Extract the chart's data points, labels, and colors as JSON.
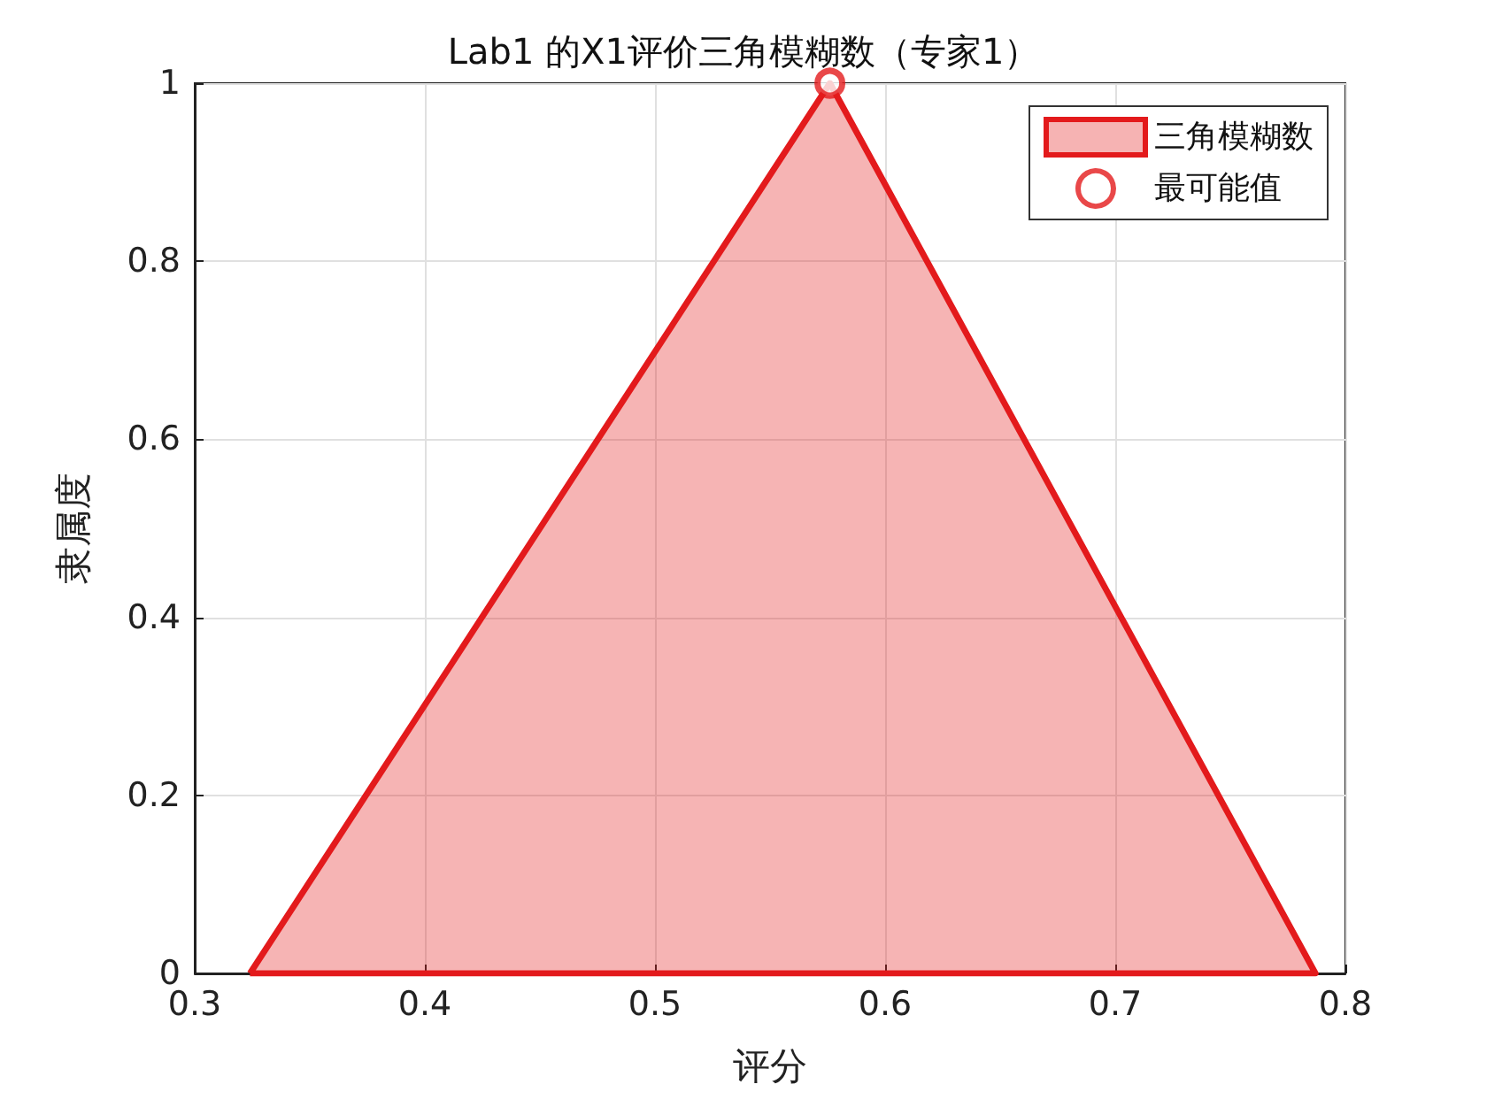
{
  "chart_data": {
    "type": "area",
    "title": "Lab1 的X1评价三角模糊数（专家1）",
    "xlabel": "评分",
    "ylabel": "隶属度",
    "series": [
      {
        "name": "三角模糊数",
        "type": "area",
        "color": "#e31a1c",
        "x": [
          0.324,
          0.576,
          0.787,
          0.324
        ],
        "values": [
          0,
          1,
          0,
          0
        ],
        "marker": "none"
      },
      {
        "name": "最可能值",
        "type": "scatter",
        "color": "#e31a1c",
        "x": [
          0.576
        ],
        "values": [
          1
        ],
        "marker": "circle"
      }
    ],
    "xlim": [
      0.3,
      0.8
    ],
    "xticks": [
      0.3,
      0.4,
      0.5,
      0.6,
      0.7,
      0.8
    ],
    "ylim": [
      0,
      1
    ],
    "yticks": [
      0,
      0.2,
      0.4,
      0.6,
      0.8,
      1
    ],
    "grid": true,
    "legend": "top right"
  }
}
